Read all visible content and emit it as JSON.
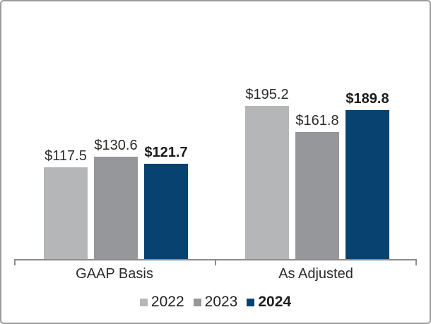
{
  "chart_data": {
    "type": "bar",
    "title": "",
    "categories": [
      "GAAP Basis",
      "As Adjusted"
    ],
    "series": [
      {
        "name": "2022",
        "color": "#b4b6b8",
        "values": [
          117.5,
          195.2
        ],
        "labels": [
          "$117.5",
          "$195.2"
        ],
        "bold": false
      },
      {
        "name": "2023",
        "color": "#96979a",
        "values": [
          130.6,
          161.8
        ],
        "labels": [
          "$130.6",
          "$161.8"
        ],
        "bold": false
      },
      {
        "name": "2024",
        "color": "#084270",
        "values": [
          121.7,
          189.8
        ],
        "labels": [
          "$121.7",
          "$189.8"
        ],
        "bold": true
      }
    ],
    "value_prefix": "$",
    "ylim": [
      0,
      220
    ],
    "grid": false,
    "legend_position": "bottom",
    "axis_color": "#8c8c8c",
    "border_color": "#9b9b9b",
    "text_color": "#2b2b2b"
  }
}
